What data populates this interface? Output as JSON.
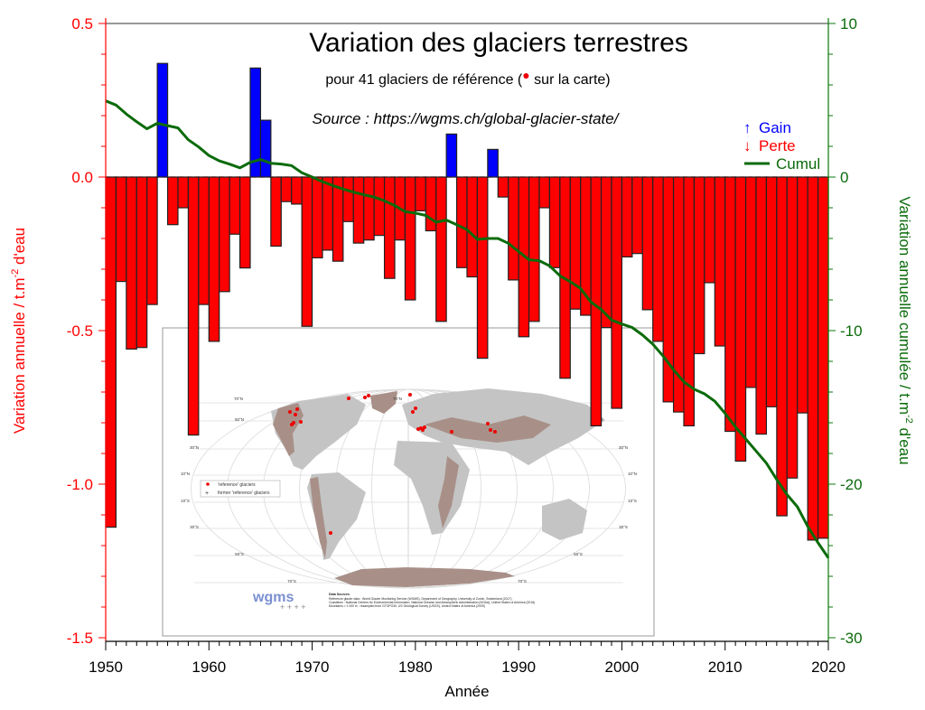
{
  "chart_data": {
    "type": "bar",
    "title": "Variation des glaciers terrestres",
    "subtitle_prefix": "pour 41 glaciers de référence (",
    "subtitle_suffix": " sur la carte)",
    "source": "Source : https://wgms.ch/global-glacier-state/",
    "xlabel": "Année",
    "ylabel": {
      "prefix": "Variation annuelle / t.m",
      "sup": "-2",
      "suffix": " d'eau"
    },
    "y2label": {
      "prefix": "Variation annuelle cumulée / t.m",
      "sup": "-2",
      "suffix": " d'eau"
    },
    "xlim": [
      1950,
      2020
    ],
    "ylim": [
      -1.5,
      0.5
    ],
    "y2lim": [
      -30,
      10
    ],
    "x_ticks": [
      "1950",
      "1960",
      "1970",
      "1980",
      "1990",
      "2000",
      "2010",
      "2020"
    ],
    "y_ticks": [
      "0.5",
      "0.0",
      "-0.5",
      "-1.0",
      "-1.5"
    ],
    "y2_ticks": [
      "10",
      "0",
      "-10",
      "-20",
      "-30"
    ],
    "legend": {
      "position": "top-right",
      "gain": {
        "symbol": "↑",
        "label": "Gain"
      },
      "loss": {
        "symbol": "↓",
        "label": "Perte"
      },
      "cumul": {
        "label": "Cumul"
      }
    },
    "colors": {
      "gain": "#0000ff",
      "loss": "#ff0000",
      "cumul": "#0b6b0b",
      "left_axis": "#ff0000",
      "right_axis": "#0b7a0b"
    },
    "years": [
      1950,
      1951,
      1952,
      1953,
      1954,
      1955,
      1956,
      1957,
      1958,
      1959,
      1960,
      1961,
      1962,
      1963,
      1964,
      1965,
      1966,
      1967,
      1968,
      1969,
      1970,
      1971,
      1972,
      1973,
      1974,
      1975,
      1976,
      1977,
      1978,
      1979,
      1980,
      1981,
      1982,
      1983,
      1984,
      1985,
      1986,
      1987,
      1988,
      1989,
      1990,
      1991,
      1992,
      1993,
      1994,
      1995,
      1996,
      1997,
      1998,
      1999,
      2000,
      2001,
      2002,
      2003,
      2004,
      2005,
      2006,
      2007,
      2008,
      2009,
      2010,
      2011,
      2012,
      2013,
      2014,
      2015,
      2016,
      2017,
      2018,
      2019
    ],
    "annual": [
      -1.14,
      -0.34,
      -0.56,
      -0.555,
      -0.415,
      0.37,
      -0.155,
      -0.1,
      -0.84,
      -0.415,
      -0.535,
      -0.373,
      -0.186,
      -0.296,
      0.355,
      0.185,
      -0.225,
      -0.08,
      -0.088,
      -0.486,
      -0.263,
      -0.238,
      -0.274,
      -0.145,
      -0.215,
      -0.205,
      -0.19,
      -0.33,
      -0.205,
      -0.4,
      -0.11,
      -0.175,
      -0.47,
      0.14,
      -0.295,
      -0.325,
      -0.59,
      0.09,
      -0.065,
      -0.335,
      -0.52,
      -0.47,
      -0.1,
      -0.295,
      -0.655,
      -0.43,
      -0.45,
      -0.81,
      -0.49,
      -0.753,
      -0.26,
      -0.249,
      -0.432,
      -0.535,
      -0.732,
      -0.765,
      -0.81,
      -0.575,
      -0.344,
      -0.55,
      -0.828,
      -0.925,
      -0.685,
      -0.837,
      -0.748,
      -1.103,
      -0.98,
      -0.768,
      -1.182,
      -1.176
    ],
    "cumul_years": [
      1950,
      1951,
      1952,
      1953,
      1954,
      1955,
      1956,
      1957,
      1958,
      1959,
      1960,
      1961,
      1962,
      1963,
      1964,
      1965,
      1966,
      1967,
      1968,
      1969,
      1970,
      1971,
      1972,
      1973,
      1974,
      1975,
      1976,
      1977,
      1978,
      1979,
      1980,
      1981,
      1982,
      1983,
      1984,
      1985,
      1986,
      1987,
      1988,
      1989,
      1990,
      1991,
      1992,
      1993,
      1994,
      1995,
      1996,
      1997,
      1998,
      1999,
      2000,
      2001,
      2002,
      2003,
      2004,
      2005,
      2006,
      2007,
      2008,
      2009,
      2010,
      2011,
      2012,
      2013,
      2014,
      2015,
      2016,
      2017,
      2018,
      2019,
      2020
    ],
    "cumul": [
      4.96,
      4.69,
      4.1,
      3.6,
      3.14,
      3.5,
      3.35,
      3.2,
      2.43,
      1.96,
      1.4,
      1.05,
      0.84,
      0.6,
      0.96,
      1.14,
      0.9,
      0.85,
      0.75,
      0.28,
      0.0,
      -0.3,
      -0.55,
      -0.78,
      -0.98,
      -1.15,
      -1.3,
      -1.55,
      -1.86,
      -2.25,
      -2.35,
      -2.5,
      -2.94,
      -2.8,
      -3.1,
      -3.43,
      -4.06,
      -4.0,
      -4.0,
      -4.31,
      -4.85,
      -5.39,
      -5.45,
      -5.78,
      -6.43,
      -6.82,
      -7.25,
      -8.14,
      -8.63,
      -9.31,
      -9.57,
      -9.8,
      -10.29,
      -10.88,
      -11.66,
      -12.55,
      -13.33,
      -13.82,
      -14.12,
      -14.6,
      -15.39,
      -16.27,
      -17.06,
      -17.84,
      -18.63,
      -19.7,
      -20.68,
      -21.47,
      -22.74,
      -23.82,
      -24.8
    ]
  },
  "map": {
    "legend": {
      "reference": "'reference' glaciers",
      "former": "former 'reference' glaciers"
    },
    "lat_labels": [
      "70°N",
      "50°N",
      "30°N",
      "10°N",
      "10°S",
      "30°S",
      "50°S",
      "70°S"
    ],
    "logo": "wgms",
    "sources_title": "Data Sources",
    "sources": [
      "Reference glacier data : World Glacier Monitoring Service (WGMS), Department of Geography, University of Zurich, Switzerland (2017)",
      "Coastlines : National Centers for Environmental Information, National Oceanic and Atmospheric Administration (NOAA), United States of America (2016)",
      "Mountains > 1 000 m : resampled from GTOPO30, US Geological Survey (USGS), United States of America (2009)"
    ]
  }
}
